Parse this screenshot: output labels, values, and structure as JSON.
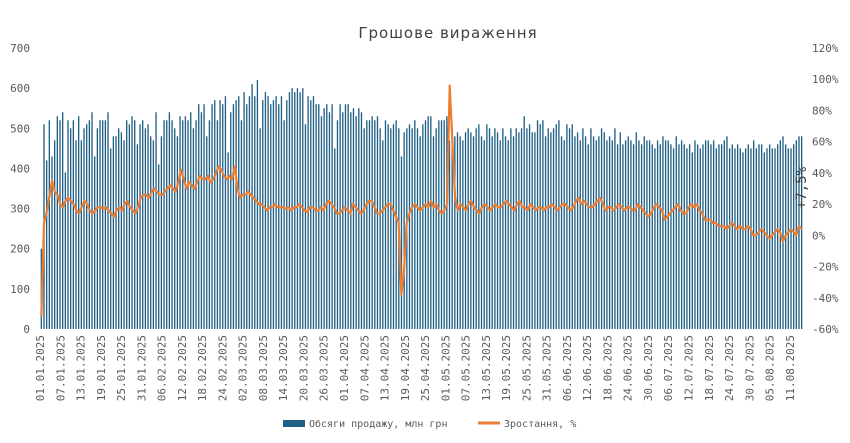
{
  "chart_data": {
    "type": "bar+line",
    "title": "Грошове вираження",
    "annotation": "+7,5%",
    "y_left": {
      "ticks": [
        "0",
        "100",
        "200",
        "300",
        "400",
        "500",
        "600",
        "700"
      ],
      "range": [
        0,
        700
      ]
    },
    "y_right": {
      "ticks": [
        "-60%",
        "-40%",
        "-20%",
        "0%",
        "20%",
        "40%",
        "60%",
        "80%",
        "100%",
        "120%"
      ],
      "range": [
        -60,
        120
      ]
    },
    "x_ticks": [
      "01.01.2025",
      "07.01.2025",
      "13.01.2025",
      "19.01.2025",
      "25.01.2025",
      "31.01.2025",
      "06.02.2025",
      "12.02.2025",
      "18.02.2025",
      "24.02.2025",
      "02.03.2025",
      "08.03.2025",
      "14.03.2025",
      "20.03.2025",
      "26.03.2025",
      "01.04.2025",
      "07.04.2025",
      "13.04.2025",
      "19.04.2025",
      "25.04.2025",
      "01.05.2025",
      "07.05.2025",
      "13.05.2025",
      "19.05.2025",
      "25.05.2025",
      "31.05.2025",
      "06.06.2025",
      "12.06.2025",
      "18.06.2025",
      "24.06.2025",
      "30.06.2025",
      "06.07.2025",
      "12.07.2025",
      "18.07.2025",
      "24.07.2025",
      "30.07.2025",
      "05.08.2025",
      "11.08.2025"
    ],
    "series": [
      {
        "name": "Обсяги продажу, млн грн",
        "type": "bar",
        "axis": "left",
        "color": "#1f5f86",
        "weekly_levels": [
          [
            1,
            "low"
          ],
          [
            2,
            500
          ],
          [
            3,
            470
          ],
          [
            4,
            490
          ],
          [
            5,
            500
          ],
          [
            6,
            520
          ],
          [
            7,
            490
          ],
          [
            8,
            510
          ],
          [
            9,
            520
          ],
          [
            10,
            530
          ],
          [
            11,
            500
          ],
          [
            12,
            560
          ],
          [
            13,
            560
          ],
          [
            14,
            590
          ],
          [
            15,
            600
          ],
          [
            16,
            580
          ],
          [
            17,
            560
          ],
          [
            18,
            540
          ],
          [
            19,
            500
          ],
          [
            20,
            490
          ],
          [
            21,
            500
          ],
          [
            22,
            510
          ],
          [
            23,
            480
          ],
          [
            24,
            470
          ],
          [
            25,
            500
          ],
          [
            26,
            500
          ],
          [
            27,
            490
          ],
          [
            28,
            480
          ],
          [
            29,
            470
          ],
          [
            30,
            460
          ],
          [
            31,
            470
          ],
          [
            32,
            470
          ],
          [
            33,
            480
          ],
          [
            34,
            470
          ],
          [
            35,
            450
          ],
          [
            36,
            460
          ],
          [
            37,
            470
          ],
          [
            38,
            470
          ]
        ],
        "values": [
          200,
          510,
          420,
          520,
          430,
          470,
          530,
          520,
          540,
          390,
          520,
          500,
          520,
          470,
          530,
          470,
          500,
          510,
          520,
          540,
          430,
          500,
          520,
          520,
          520,
          540,
          450,
          480,
          480,
          500,
          490,
          470,
          520,
          510,
          530,
          520,
          460,
          510,
          520,
          500,
          510,
          480,
          470,
          540,
          410,
          480,
          520,
          520,
          540,
          520,
          500,
          480,
          530,
          520,
          530,
          520,
          540,
          500,
          520,
          560,
          540,
          560,
          480,
          520,
          560,
          570,
          520,
          570,
          560,
          580,
          440,
          540,
          560,
          570,
          580,
          520,
          590,
          560,
          580,
          610,
          580,
          620,
          500,
          570,
          590,
          580,
          560,
          570,
          580,
          560,
          580,
          520,
          570,
          590,
          600,
          590,
          600,
          590,
          600,
          510,
          580,
          570,
          580,
          560,
          560,
          530,
          550,
          560,
          540,
          560,
          450,
          520,
          560,
          540,
          560,
          560,
          540,
          550,
          530,
          550,
          540,
          500,
          520,
          520,
          530,
          520,
          530,
          500,
          470,
          520,
          510,
          500,
          510,
          520,
          500,
          430,
          490,
          500,
          510,
          500,
          520,
          500,
          480,
          510,
          520,
          530,
          530,
          480,
          500,
          520,
          520,
          520,
          530,
          470,
          500,
          480,
          490,
          480,
          470,
          490,
          500,
          490,
          480,
          500,
          510,
          480,
          470,
          510,
          500,
          480,
          500,
          490,
          470,
          500,
          480,
          470,
          500,
          480,
          500,
          490,
          500,
          530,
          500,
          510,
          490,
          490,
          520,
          510,
          520,
          480,
          500,
          490,
          500,
          510,
          520,
          480,
          470,
          510,
          500,
          510,
          480,
          490,
          470,
          500,
          480,
          460,
          500,
          480,
          470,
          480,
          500,
          490,
          470,
          480,
          470,
          500,
          460,
          490,
          460,
          470,
          480,
          470,
          460,
          490,
          470,
          460,
          480,
          470,
          470,
          460,
          450,
          470,
          460,
          480,
          470,
          470,
          460,
          450,
          480,
          460,
          470,
          460,
          450,
          460,
          440,
          470,
          460,
          450,
          460,
          470,
          470,
          460,
          470,
          450,
          460,
          460,
          470,
          480,
          450,
          460,
          450,
          460,
          450,
          440,
          450,
          460,
          450,
          470,
          450,
          460,
          460,
          440,
          450,
          460,
          450,
          450,
          460,
          470,
          480,
          460,
          450,
          450,
          460,
          470,
          480,
          480
        ]
      },
      {
        "name": "Зростання, %",
        "type": "line",
        "axis": "right",
        "color": "#ed7d31",
        "values": [
          -52,
          8,
          15,
          25,
          35,
          28,
          26,
          20,
          18,
          22,
          24,
          22,
          20,
          16,
          14,
          18,
          22,
          20,
          16,
          14,
          16,
          18,
          18,
          17,
          18,
          16,
          14,
          12,
          16,
          18,
          16,
          20,
          22,
          18,
          16,
          14,
          18,
          24,
          26,
          26,
          24,
          28,
          30,
          28,
          26,
          26,
          28,
          30,
          32,
          30,
          28,
          34,
          42,
          36,
          30,
          34,
          32,
          30,
          34,
          38,
          36,
          36,
          38,
          34,
          36,
          40,
          44,
          42,
          38,
          36,
          38,
          36,
          44,
          30,
          24,
          26,
          26,
          28,
          26,
          24,
          22,
          20,
          20,
          18,
          16,
          18,
          18,
          20,
          18,
          18,
          18,
          17,
          18,
          16,
          18,
          18,
          20,
          18,
          16,
          15,
          18,
          18,
          16,
          16,
          18,
          16,
          20,
          22,
          20,
          18,
          14,
          14,
          16,
          18,
          16,
          14,
          20,
          18,
          16,
          14,
          16,
          20,
          22,
          22,
          18,
          14,
          14,
          16,
          18,
          20,
          20,
          16,
          12,
          8,
          -38,
          -22,
          8,
          14,
          18,
          20,
          18,
          16,
          18,
          20,
          18,
          22,
          18,
          20,
          16,
          14,
          16,
          20,
          96,
          60,
          24,
          16,
          20,
          18,
          16,
          20,
          22,
          18,
          16,
          14,
          18,
          20,
          18,
          16,
          18,
          20,
          18,
          18,
          20,
          22,
          20,
          18,
          16,
          20,
          22,
          18,
          18,
          16,
          20,
          18,
          16,
          18,
          18,
          16,
          18,
          18,
          20,
          18,
          16,
          18,
          20,
          20,
          18,
          16,
          18,
          22,
          24,
          20,
          22,
          20,
          18,
          18,
          20,
          22,
          24,
          20,
          16,
          18,
          18,
          16,
          18,
          20,
          18,
          16,
          18,
          18,
          16,
          16,
          20,
          18,
          16,
          14,
          12,
          14,
          18,
          20,
          18,
          16,
          10,
          12,
          14,
          16,
          18,
          20,
          16,
          14,
          14,
          18,
          20,
          18,
          20,
          16,
          14,
          10,
          10,
          10,
          8,
          8,
          6,
          6,
          6,
          4,
          6,
          8,
          6,
          4,
          6,
          4,
          4,
          6,
          4,
          0,
          0,
          2,
          4,
          2,
          0,
          -2,
          0,
          2,
          4,
          2,
          -4,
          0,
          2,
          4,
          2,
          0,
          6,
          4
        ]
      }
    ],
    "legend": {
      "position": "bottom-center"
    },
    "grid": false
  }
}
